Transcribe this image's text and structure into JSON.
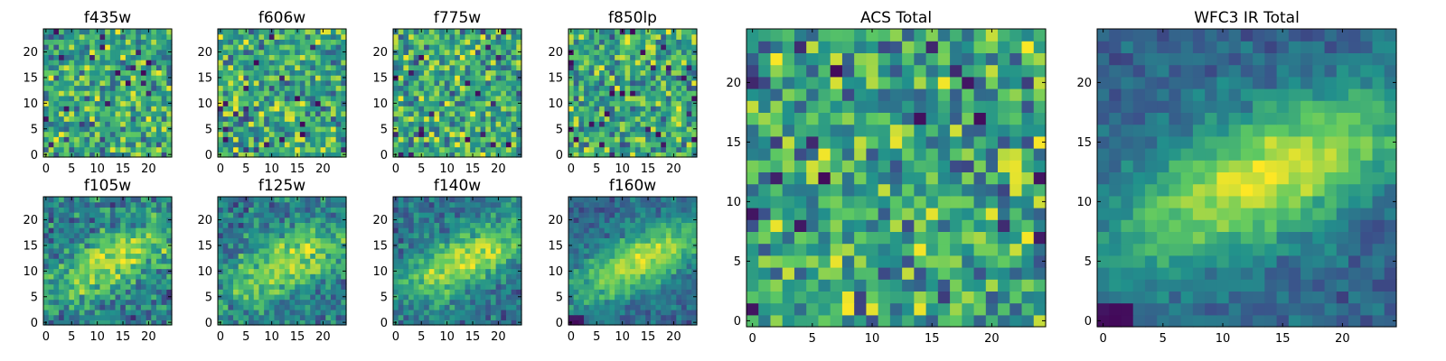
{
  "colors": {
    "colormap": "viridis",
    "viridis_stops": [
      "#440154",
      "#3b528b",
      "#21918c",
      "#5ec962",
      "#fde725"
    ]
  },
  "chart_data": [
    {
      "type": "heatmap",
      "title": "f435w",
      "description": "25x25 pixel cutout, noise dominated",
      "xticks": [
        0,
        5,
        10,
        15,
        20
      ],
      "yticks": [
        0,
        5,
        10,
        15,
        20
      ],
      "xlim": [
        0,
        25
      ],
      "ylim": [
        0,
        25
      ],
      "grid": false,
      "pattern": "noise"
    },
    {
      "type": "heatmap",
      "title": "f606w",
      "xticks": [
        0,
        5,
        10,
        15,
        20
      ],
      "yticks": [
        0,
        5,
        10,
        15,
        20
      ],
      "xlim": [
        0,
        25
      ],
      "ylim": [
        0,
        25
      ],
      "grid": false,
      "pattern": "noise"
    },
    {
      "type": "heatmap",
      "title": "f775w",
      "xticks": [
        0,
        5,
        10,
        15,
        20
      ],
      "yticks": [
        0,
        5,
        10,
        15,
        20
      ],
      "xlim": [
        0,
        25
      ],
      "ylim": [
        0,
        25
      ],
      "grid": false,
      "pattern": "noise"
    },
    {
      "type": "heatmap",
      "title": "f850lp",
      "xticks": [
        0,
        5,
        10,
        15,
        20
      ],
      "yticks": [
        0,
        5,
        10,
        15,
        20
      ],
      "xlim": [
        0,
        25
      ],
      "ylim": [
        0,
        25
      ],
      "grid": false,
      "pattern": "noise"
    },
    {
      "type": "heatmap",
      "title": "f105w",
      "xticks": [
        0,
        5,
        10,
        15,
        20
      ],
      "yticks": [
        0,
        5,
        10,
        15,
        20
      ],
      "xlim": [
        0,
        25
      ],
      "ylim": [
        0,
        25
      ],
      "grid": false,
      "pattern": "source",
      "signal_strength": 0.45
    },
    {
      "type": "heatmap",
      "title": "f125w",
      "xticks": [
        0,
        5,
        10,
        15,
        20
      ],
      "yticks": [
        0,
        5,
        10,
        15,
        20
      ],
      "xlim": [
        0,
        25
      ],
      "ylim": [
        0,
        25
      ],
      "grid": false,
      "pattern": "source",
      "signal_strength": 0.55
    },
    {
      "type": "heatmap",
      "title": "f140w",
      "xticks": [
        0,
        5,
        10,
        15,
        20
      ],
      "yticks": [
        0,
        5,
        10,
        15,
        20
      ],
      "xlim": [
        0,
        25
      ],
      "ylim": [
        0,
        25
      ],
      "grid": false,
      "pattern": "source",
      "signal_strength": 0.7
    },
    {
      "type": "heatmap",
      "title": "f160w",
      "xticks": [
        0,
        5,
        10,
        15,
        20
      ],
      "yticks": [
        0,
        5,
        10,
        15,
        20
      ],
      "xlim": [
        0,
        25
      ],
      "ylim": [
        0,
        25
      ],
      "grid": false,
      "pattern": "source",
      "signal_strength": 0.85
    },
    {
      "type": "heatmap",
      "title": "ACS Total",
      "xticks": [
        0,
        5,
        10,
        15,
        20
      ],
      "yticks": [
        0,
        5,
        10,
        15,
        20
      ],
      "xlim": [
        0,
        25
      ],
      "ylim": [
        0,
        25
      ],
      "grid": false,
      "pattern": "noise"
    },
    {
      "type": "heatmap",
      "title": "WFC3 IR Total",
      "xticks": [
        0,
        5,
        10,
        15,
        20
      ],
      "yticks": [
        5,
        10,
        15,
        20,
        0
      ],
      "xlim": [
        0,
        25
      ],
      "ylim": [
        0,
        25
      ],
      "grid": false,
      "pattern": "source",
      "signal_strength": 1.0
    }
  ]
}
